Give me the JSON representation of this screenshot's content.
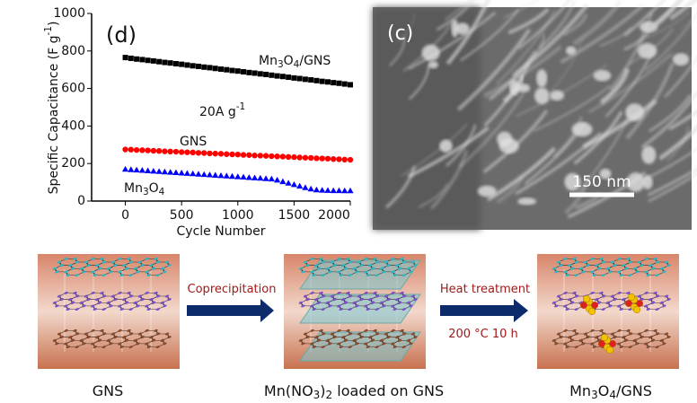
{
  "chart_data": {
    "type": "scatter",
    "panel_label": "(d)",
    "x_label": "Cycle Number",
    "y_label": "Specific Capacitance (F g-1)",
    "annotation": "20A g-1",
    "x": [
      0,
      50,
      100,
      150,
      200,
      250,
      300,
      350,
      400,
      450,
      500,
      550,
      600,
      650,
      700,
      750,
      800,
      850,
      900,
      950,
      1000,
      1050,
      1100,
      1150,
      1200,
      1250,
      1300,
      1350,
      1400,
      1450,
      1500,
      1550,
      1600,
      1650,
      1700,
      1750,
      1800,
      1850,
      1900,
      1950,
      2000
    ],
    "series": [
      {
        "name": "Mn3O4/GNS",
        "color": "#000000",
        "marker": "square",
        "values": [
          765,
          761,
          757,
          754,
          750,
          747,
          743,
          739,
          736,
          732,
          729,
          725,
          721,
          718,
          714,
          711,
          707,
          703,
          700,
          696,
          693,
          689,
          685,
          682,
          678,
          675,
          671,
          667,
          664,
          660,
          656,
          653,
          649,
          646,
          642,
          638,
          635,
          631,
          628,
          624,
          620
        ]
      },
      {
        "name": "GNS",
        "color": "#ff0000",
        "marker": "circle",
        "values": [
          275,
          274,
          272,
          271,
          270,
          268,
          267,
          265,
          264,
          263,
          261,
          260,
          259,
          257,
          256,
          254,
          253,
          252,
          250,
          249,
          248,
          246,
          245,
          243,
          242,
          241,
          239,
          238,
          237,
          235,
          234,
          232,
          231,
          230,
          228,
          227,
          226,
          224,
          223,
          221,
          220
        ]
      },
      {
        "name": "Mn3O4",
        "color": "#0000ff",
        "marker": "triangle",
        "values": [
          170,
          168,
          166,
          164,
          162,
          160,
          158,
          156,
          154,
          152,
          150,
          148,
          146,
          144,
          142,
          140,
          138,
          136,
          134,
          132,
          130,
          128,
          126,
          124,
          122,
          120,
          118,
          112,
          104,
          96,
          88,
          80,
          72,
          65,
          60,
          58,
          57,
          56,
          56,
          55,
          55
        ]
      }
    ],
    "xlim": [
      -300,
      2000
    ],
    "xticks": [
      0,
      500,
      1000,
      1500,
      2000
    ],
    "ylim": [
      0,
      1000
    ],
    "yticks": [
      0,
      200,
      400,
      600,
      800,
      1000
    ]
  },
  "sem_image": {
    "panel_label": "(c)",
    "scale_bar": "150 nm"
  },
  "schematic": {
    "step1": "Coprecipitation",
    "step2": "Heat treatment",
    "step2_condition": "200 °C 10 h",
    "labels": [
      "GNS",
      "Mn(NO3)2 loaded on GNS",
      "Mn3O4/GNS"
    ]
  }
}
